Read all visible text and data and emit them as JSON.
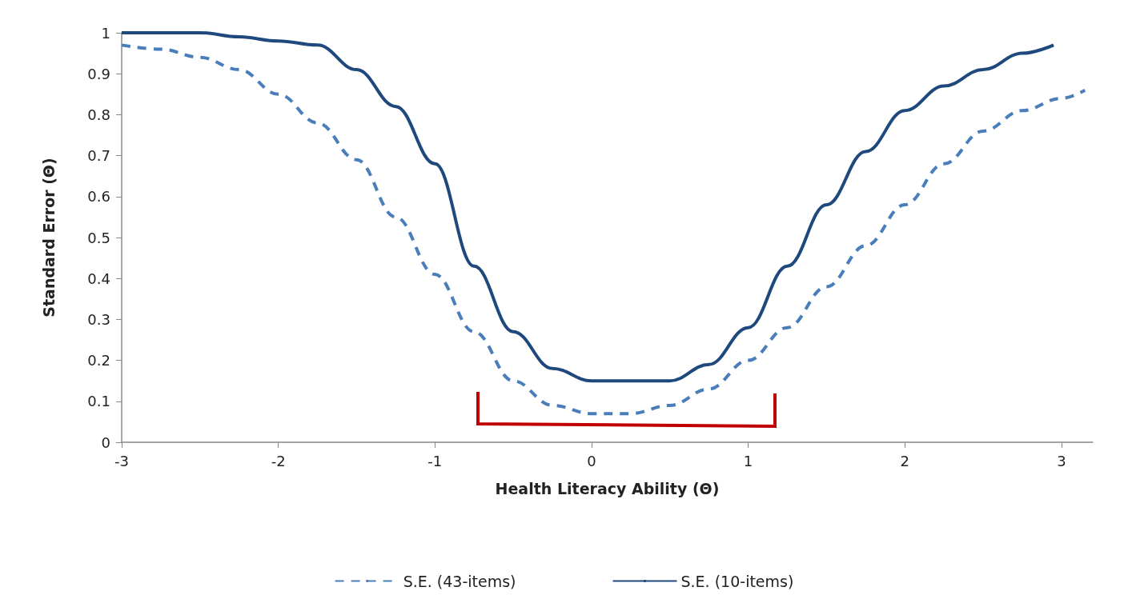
{
  "chart_data": {
    "type": "line",
    "xlabel": "Health Literacy Ability (Θ)",
    "ylabel": "Standard Error (Θ)",
    "xlim": [
      -3,
      3.2
    ],
    "xticks": [
      -3,
      -2,
      -1,
      0,
      1,
      2,
      3
    ],
    "ylim": [
      0,
      1
    ],
    "yticks": [
      0,
      0.1,
      0.2,
      0.3,
      0.4,
      0.5,
      0.6,
      0.7,
      0.8,
      0.9,
      1
    ],
    "grid": false,
    "legend": "bottom",
    "marker": "none",
    "series": [
      {
        "name": "S.E. (43-items)",
        "color": "#4a7ebb",
        "line_style": "dashed",
        "x": [
          -3,
          -2.75,
          -2.5,
          -2.25,
          -2,
          -1.75,
          -1.5,
          -1.25,
          -1,
          -0.75,
          -0.5,
          -0.25,
          0,
          0.25,
          0.5,
          0.75,
          1,
          1.25,
          1.5,
          1.75,
          2,
          2.25,
          2.5,
          2.75,
          3,
          3.15
        ],
        "values": [
          0.97,
          0.96,
          0.94,
          0.91,
          0.85,
          0.78,
          0.69,
          0.55,
          0.41,
          0.27,
          0.15,
          0.09,
          0.07,
          0.07,
          0.09,
          0.13,
          0.2,
          0.28,
          0.38,
          0.48,
          0.58,
          0.68,
          0.76,
          0.81,
          0.84,
          0.86
        ]
      },
      {
        "name": "S.E. (10-items)",
        "color": "#1f497d",
        "line_style": "solid",
        "x": [
          -3,
          -2.75,
          -2.5,
          -2.25,
          -2,
          -1.75,
          -1.5,
          -1.25,
          -1,
          -0.75,
          -0.5,
          -0.25,
          0,
          0.25,
          0.5,
          0.75,
          1,
          1.25,
          1.5,
          1.75,
          2,
          2.25,
          2.5,
          2.75,
          2.95
        ],
        "values": [
          1,
          1,
          1,
          0.99,
          0.98,
          0.97,
          0.91,
          0.82,
          0.68,
          0.43,
          0.27,
          0.18,
          0.15,
          0.15,
          0.15,
          0.19,
          0.28,
          0.43,
          0.58,
          0.71,
          0.81,
          0.87,
          0.91,
          0.95,
          0.97
        ]
      }
    ]
  }
}
